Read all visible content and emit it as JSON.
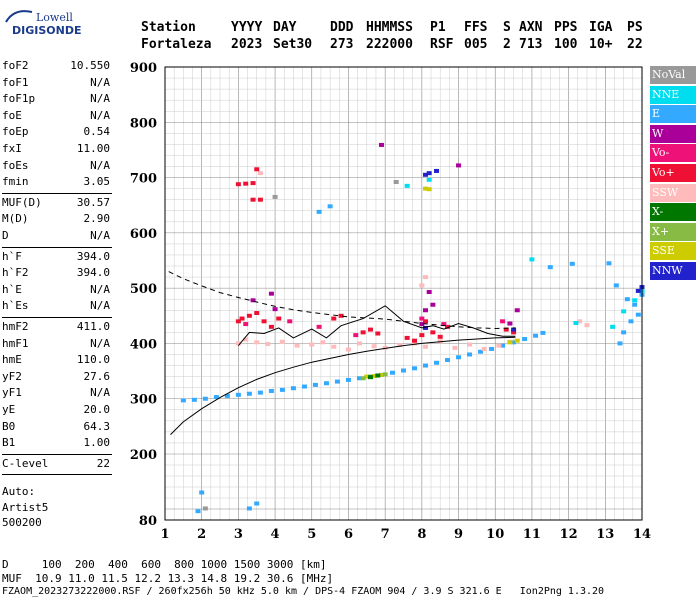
{
  "logo": {
    "line1": "Lowell",
    "line2": "DIGISONDE"
  },
  "header": {
    "row1": [
      "Station",
      "YYYY",
      "DAY",
      "DDD",
      "HHMMSS",
      "P1",
      "FFS",
      "S",
      "AXN",
      "PPS",
      "IGA",
      "PS"
    ],
    "row2": [
      "Fortaleza",
      "2023",
      "Set30",
      "273",
      "222000",
      "RSF",
      "005",
      "2",
      "713",
      "100",
      "10+",
      "22"
    ]
  },
  "scaled_params": {
    "group1": [
      {
        "k": "foF2",
        "v": "10.550"
      },
      {
        "k": "foF1",
        "v": "N/A"
      },
      {
        "k": "foF1p",
        "v": "N/A"
      },
      {
        "k": "foE",
        "v": "N/A"
      },
      {
        "k": "foEp",
        "v": "0.54"
      },
      {
        "k": "fxI",
        "v": "11.00"
      },
      {
        "k": "foEs",
        "v": "N/A"
      },
      {
        "k": "fmin",
        "v": "3.05"
      }
    ],
    "group2": [
      {
        "k": "MUF(D)",
        "v": "30.57"
      },
      {
        "k": "M(D)",
        "v": "2.90"
      },
      {
        "k": "D",
        "v": "N/A"
      }
    ],
    "group3": [
      {
        "k": "h`F",
        "v": "394.0"
      },
      {
        "k": "h`F2",
        "v": "394.0"
      },
      {
        "k": "h`E",
        "v": "N/A"
      },
      {
        "k": "h`Es",
        "v": "N/A"
      }
    ],
    "group4": [
      {
        "k": "hmF2",
        "v": "411.0"
      },
      {
        "k": "hmF1",
        "v": "N/A"
      },
      {
        "k": "hmE",
        "v": "110.0"
      },
      {
        "k": "yF2",
        "v": "27.6"
      },
      {
        "k": "yF1",
        "v": "N/A"
      },
      {
        "k": "yE",
        "v": "20.0"
      },
      {
        "k": "B0",
        "v": "64.3"
      },
      {
        "k": "B1",
        "v": "1.00"
      }
    ],
    "group5": [
      {
        "k": "C-level",
        "v": "22"
      }
    ],
    "auto": [
      "Auto:",
      "Artist5",
      "500200"
    ]
  },
  "legend": [
    {
      "label": "NoVal",
      "color": "#999999"
    },
    {
      "label": "NNE",
      "color": "#00ddee"
    },
    {
      "label": "E",
      "color": "#33aaff"
    },
    {
      "label": "W",
      "color": "#aa0099"
    },
    {
      "label": "Vo-",
      "color": "#ee1177"
    },
    {
      "label": "Vo+",
      "color": "#ee1133"
    },
    {
      "label": "SSW",
      "color": "#ffbbbb"
    },
    {
      "label": "X-",
      "color": "#007700"
    },
    {
      "label": "X+",
      "color": "#88bb44"
    },
    {
      "label": "SSE",
      "color": "#cccc00"
    },
    {
      "label": "NNW",
      "color": "#2222cc"
    }
  ],
  "footer": {
    "d_line": "D     100  200  400  600  800 1000 1500 3000 [km]",
    "muf_line": "MUF  10.9 11.0 11.5 12.2 13.3 14.8 19.2 30.6 [MHz]",
    "file_line": "FZAOM_2023273222000.RSF / 260fx256h 50 kHz 5.0 km / DPS-4 FZAOM 904 / 3.9 S 321.6 E   Ion2Png 1.3.20"
  },
  "chart_data": {
    "type": "scatter",
    "title": "",
    "xlabel": "",
    "ylabel": "",
    "xlim": [
      1,
      14
    ],
    "ylim": [
      80,
      900
    ],
    "x_ticks": [
      1,
      2,
      3,
      4,
      5,
      6,
      7,
      8,
      9,
      10,
      11,
      12,
      13,
      14
    ],
    "y_ticks": [
      80,
      200,
      300,
      400,
      500,
      600,
      700,
      800,
      900
    ],
    "grid": true,
    "series": [
      {
        "name": "E",
        "color": "#33aaff",
        "points": [
          [
            1.5,
            297
          ],
          [
            1.8,
            298
          ],
          [
            2.1,
            300
          ],
          [
            2.4,
            303
          ],
          [
            2.7,
            305
          ],
          [
            3.0,
            307
          ],
          [
            3.3,
            309
          ],
          [
            3.6,
            311
          ],
          [
            3.9,
            314
          ],
          [
            4.2,
            316
          ],
          [
            4.5,
            319
          ],
          [
            4.8,
            322
          ],
          [
            5.1,
            325
          ],
          [
            5.4,
            328
          ],
          [
            5.7,
            331
          ],
          [
            6.0,
            334
          ],
          [
            6.3,
            337
          ],
          [
            6.6,
            340
          ],
          [
            6.9,
            343
          ],
          [
            7.2,
            347
          ],
          [
            7.5,
            351
          ],
          [
            7.8,
            355
          ],
          [
            8.1,
            360
          ],
          [
            8.4,
            365
          ],
          [
            8.7,
            370
          ],
          [
            9.0,
            375
          ],
          [
            9.3,
            380
          ],
          [
            9.6,
            385
          ],
          [
            9.9,
            390
          ],
          [
            10.2,
            396
          ],
          [
            10.5,
            402
          ],
          [
            10.8,
            408
          ],
          [
            11.1,
            414
          ],
          [
            11.3,
            419
          ],
          [
            1.9,
            96
          ],
          [
            2.0,
            130
          ],
          [
            3.5,
            110
          ],
          [
            3.3,
            101
          ],
          [
            5.2,
            638
          ],
          [
            5.5,
            648
          ],
          [
            11.5,
            538
          ],
          [
            12.1,
            544
          ],
          [
            13.1,
            545
          ],
          [
            13.3,
            505
          ],
          [
            13.6,
            480
          ],
          [
            13.8,
            470
          ],
          [
            13.9,
            452
          ],
          [
            14.0,
            488
          ],
          [
            13.5,
            420
          ],
          [
            13.7,
            440
          ],
          [
            13.4,
            400
          ]
        ]
      },
      {
        "name": "SSW",
        "color": "#ffbbbb",
        "points": [
          [
            3.0,
            400
          ],
          [
            3.2,
            407
          ],
          [
            3.5,
            402
          ],
          [
            3.8,
            399
          ],
          [
            4.2,
            403
          ],
          [
            4.6,
            396
          ],
          [
            5.0,
            398
          ],
          [
            5.3,
            402
          ],
          [
            5.6,
            394
          ],
          [
            6.0,
            389
          ],
          [
            6.3,
            400
          ],
          [
            6.7,
            395
          ],
          [
            7.0,
            392
          ],
          [
            7.4,
            397
          ],
          [
            7.8,
            400
          ],
          [
            8.1,
            394
          ],
          [
            8.5,
            404
          ],
          [
            8.9,
            392
          ],
          [
            9.3,
            398
          ],
          [
            9.7,
            390
          ],
          [
            10.1,
            396
          ],
          [
            10.4,
            403
          ],
          [
            12.3,
            440
          ],
          [
            12.5,
            433
          ],
          [
            3.6,
            708
          ],
          [
            8.0,
            505
          ],
          [
            8.1,
            520
          ]
        ]
      },
      {
        "name": "Vo+",
        "color": "#ee1133",
        "points": [
          [
            3.0,
            440
          ],
          [
            3.1,
            445
          ],
          [
            3.3,
            450
          ],
          [
            3.5,
            455
          ],
          [
            3.7,
            440
          ],
          [
            3.9,
            430
          ],
          [
            4.1,
            445
          ],
          [
            5.6,
            445
          ],
          [
            5.8,
            450
          ],
          [
            6.4,
            420
          ],
          [
            6.6,
            425
          ],
          [
            6.8,
            418
          ],
          [
            7.6,
            410
          ],
          [
            7.8,
            405
          ],
          [
            8.0,
            415
          ],
          [
            8.1,
            440
          ],
          [
            8.3,
            420
          ],
          [
            8.5,
            412
          ],
          [
            8.7,
            430
          ],
          [
            10.3,
            425
          ],
          [
            10.5,
            420
          ],
          [
            3.0,
            688
          ],
          [
            3.2,
            689
          ],
          [
            3.4,
            690
          ],
          [
            3.4,
            660
          ],
          [
            3.6,
            660
          ],
          [
            3.5,
            715
          ]
        ]
      },
      {
        "name": "Vo-",
        "color": "#ee1177",
        "points": [
          [
            3.2,
            435
          ],
          [
            4.4,
            440
          ],
          [
            5.2,
            430
          ],
          [
            6.2,
            415
          ],
          [
            8.0,
            445
          ],
          [
            8.6,
            435
          ],
          [
            10.2,
            440
          ]
        ]
      },
      {
        "name": "W",
        "color": "#aa0099",
        "points": [
          [
            3.4,
            478
          ],
          [
            3.9,
            490
          ],
          [
            4.0,
            462
          ],
          [
            8.0,
            435
          ],
          [
            8.1,
            460
          ],
          [
            8.2,
            493
          ],
          [
            8.3,
            470
          ],
          [
            10.4,
            436
          ],
          [
            10.6,
            460
          ],
          [
            6.9,
            759
          ],
          [
            9.0,
            722
          ]
        ]
      },
      {
        "name": "NNE",
        "color": "#00ddee",
        "points": [
          [
            13.2,
            430
          ],
          [
            13.5,
            458
          ],
          [
            13.8,
            478
          ],
          [
            14.0,
            495
          ],
          [
            12.2,
            437
          ],
          [
            11.0,
            552
          ],
          [
            8.2,
            696
          ],
          [
            7.6,
            685
          ]
        ]
      },
      {
        "name": "NNW",
        "color": "#2222cc",
        "points": [
          [
            8.1,
            705
          ],
          [
            8.2,
            708
          ],
          [
            8.4,
            712
          ],
          [
            13.9,
            495
          ],
          [
            14.0,
            502
          ],
          [
            10.5,
            425
          ],
          [
            8.1,
            428
          ]
        ]
      },
      {
        "name": "SSE",
        "color": "#cccc00",
        "points": [
          [
            6.5,
            340
          ],
          [
            6.7,
            341
          ],
          [
            6.9,
            343
          ],
          [
            8.1,
            680
          ],
          [
            8.2,
            679
          ],
          [
            10.4,
            402
          ],
          [
            10.6,
            405
          ]
        ]
      },
      {
        "name": "X-",
        "color": "#007700",
        "points": [
          [
            6.8,
            342
          ],
          [
            6.6,
            339
          ]
        ]
      },
      {
        "name": "X+",
        "color": "#88bb44",
        "points": [
          [
            6.4,
            337
          ],
          [
            7.0,
            344
          ]
        ]
      },
      {
        "name": "NoVal",
        "color": "#999999",
        "points": [
          [
            2.1,
            101
          ],
          [
            4.0,
            665
          ],
          [
            7.3,
            692
          ]
        ]
      }
    ],
    "curves": [
      {
        "role": "profile",
        "style": "solid",
        "points": [
          [
            1.15,
            235
          ],
          [
            1.5,
            258
          ],
          [
            2.0,
            282
          ],
          [
            2.5,
            302
          ],
          [
            3.0,
            320
          ],
          [
            3.5,
            335
          ],
          [
            4.0,
            347
          ],
          [
            4.5,
            357
          ],
          [
            5.0,
            366
          ],
          [
            5.5,
            373
          ],
          [
            6.0,
            380
          ],
          [
            6.5,
            386
          ],
          [
            7.0,
            391
          ],
          [
            7.5,
            396
          ],
          [
            8.0,
            400
          ],
          [
            8.5,
            403
          ],
          [
            9.0,
            406
          ],
          [
            9.5,
            408
          ],
          [
            10.0,
            410
          ],
          [
            10.55,
            411
          ]
        ]
      },
      {
        "role": "trace",
        "style": "solid",
        "points": [
          [
            3.0,
            396
          ],
          [
            3.3,
            420
          ],
          [
            3.7,
            418
          ],
          [
            4.1,
            428
          ],
          [
            4.5,
            410
          ],
          [
            5.0,
            426
          ],
          [
            5.4,
            410
          ],
          [
            5.8,
            432
          ],
          [
            6.4,
            445
          ],
          [
            7.0,
            468
          ],
          [
            7.5,
            440
          ],
          [
            8.0,
            428
          ],
          [
            8.3,
            432
          ],
          [
            8.6,
            426
          ],
          [
            9.0,
            436
          ],
          [
            9.4,
            428
          ],
          [
            9.8,
            418
          ],
          [
            10.2,
            413
          ],
          [
            10.55,
            413
          ]
        ]
      },
      {
        "role": "model",
        "style": "dashed",
        "points": [
          [
            1.1,
            530
          ],
          [
            1.5,
            517
          ],
          [
            2.0,
            504
          ],
          [
            2.5,
            492
          ],
          [
            3.0,
            483
          ],
          [
            3.5,
            475
          ],
          [
            4.0,
            467
          ],
          [
            4.5,
            461
          ],
          [
            5.0,
            456
          ],
          [
            5.5,
            452
          ],
          [
            6.0,
            448
          ],
          [
            6.5,
            446
          ],
          [
            7.0,
            444
          ],
          [
            7.5,
            440
          ],
          [
            8.0,
            436
          ],
          [
            8.5,
            433
          ],
          [
            9.0,
            430
          ],
          [
            9.5,
            428
          ],
          [
            10.0,
            427
          ],
          [
            10.55,
            428
          ]
        ]
      }
    ]
  }
}
